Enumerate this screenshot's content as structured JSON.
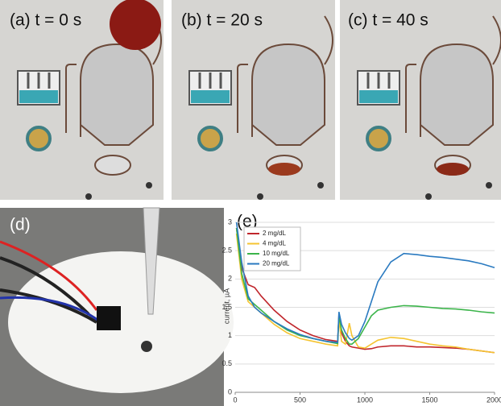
{
  "panels": [
    {
      "label": "(a) t = 0 s"
    },
    {
      "label": "(b) t = 20 s"
    },
    {
      "label": "(c) t = 40 s"
    },
    {
      "label": "(d)"
    }
  ],
  "chart_data": {
    "type": "line",
    "label": "(e)",
    "y_label": "current, µA",
    "x": [
      10,
      50,
      100,
      150,
      200,
      300,
      400,
      500,
      600,
      700,
      790,
      800,
      820,
      850,
      880,
      900,
      950,
      1000,
      1050,
      1100,
      1200,
      1300,
      1400,
      1500,
      1600,
      1700,
      1800,
      1900,
      2000
    ],
    "series": [
      {
        "name": "2 mg/dL",
        "color": "#c0262c",
        "values": [
          2.9,
          2.2,
          1.9,
          1.85,
          1.7,
          1.45,
          1.25,
          1.1,
          1.0,
          0.93,
          0.9,
          1.35,
          1.05,
          0.9,
          0.82,
          0.8,
          0.78,
          0.76,
          0.77,
          0.8,
          0.82,
          0.82,
          0.8,
          0.8,
          0.79,
          0.78,
          0.76,
          0.73,
          0.7
        ]
      },
      {
        "name": "4 mg/dL",
        "color": "#f5c431",
        "values": [
          2.8,
          2.0,
          1.6,
          1.5,
          1.4,
          1.2,
          1.05,
          0.95,
          0.9,
          0.85,
          0.82,
          1.3,
          0.9,
          0.85,
          1.22,
          1.0,
          0.8,
          0.78,
          0.85,
          0.92,
          0.97,
          0.95,
          0.9,
          0.85,
          0.82,
          0.8,
          0.76,
          0.73,
          0.7
        ]
      },
      {
        "name": "10 mg/dL",
        "color": "#3bb44a",
        "values": [
          2.9,
          2.1,
          1.65,
          1.55,
          1.45,
          1.25,
          1.1,
          1.0,
          0.95,
          0.9,
          0.86,
          1.35,
          1.1,
          0.95,
          0.85,
          0.85,
          0.95,
          1.15,
          1.35,
          1.45,
          1.5,
          1.53,
          1.52,
          1.5,
          1.48,
          1.47,
          1.45,
          1.42,
          1.4
        ]
      },
      {
        "name": "20 mg/dL",
        "color": "#2a7ac0",
        "values": [
          3.0,
          2.3,
          1.7,
          1.5,
          1.4,
          1.25,
          1.12,
          1.02,
          0.95,
          0.9,
          0.88,
          1.42,
          1.2,
          1.05,
          0.95,
          0.92,
          1.0,
          1.25,
          1.6,
          1.95,
          2.3,
          2.45,
          2.43,
          2.4,
          2.38,
          2.35,
          2.32,
          2.27,
          2.2
        ]
      }
    ],
    "xlim": [
      0,
      2000
    ],
    "ylim": [
      0,
      3
    ],
    "xticks": [
      0,
      500,
      1000,
      1500,
      2000
    ],
    "yticks": [
      0,
      0.5,
      1,
      1.5,
      2,
      2.5,
      3
    ],
    "grid": true
  }
}
